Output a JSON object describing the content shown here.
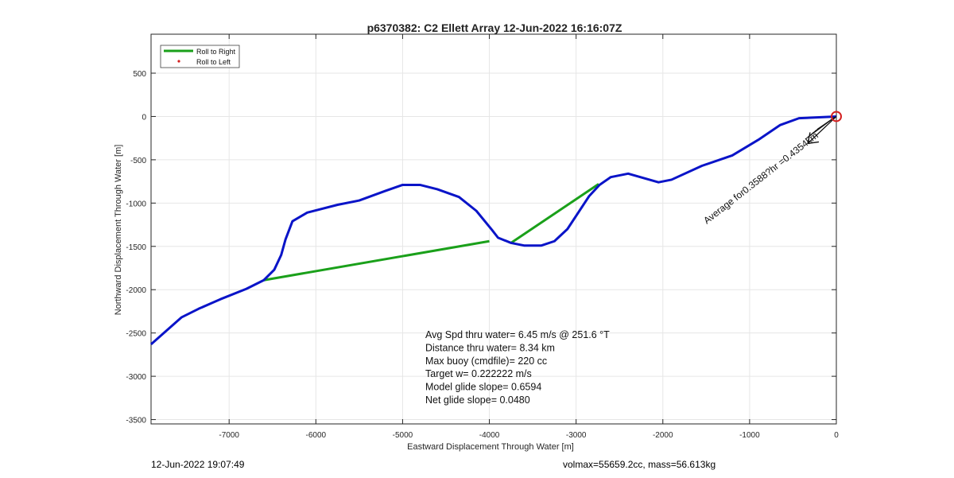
{
  "chart_data": {
    "type": "line",
    "title": "p6370382: C2 Ellett Array 12-Jun-2022 16:16:07Z",
    "xlabel": "Eastward Displacement Through Water [m]",
    "ylabel": "Northward Displacement Through Water [m]",
    "xlim": [
      -7900,
      0
    ],
    "ylim": [
      -3550,
      950
    ],
    "xticks": [
      -7000,
      -6000,
      -5000,
      -4000,
      -3000,
      -2000,
      -1000,
      0
    ],
    "yticks": [
      500,
      0,
      -500,
      -1000,
      -1500,
      -2000,
      -2500,
      -3000,
      -3500
    ],
    "grid": true,
    "legend_position": "top-left",
    "legend": [
      {
        "label": "Roll to Right",
        "color": "#1aa01a",
        "style": "line"
      },
      {
        "label": "Roll to Left",
        "color": "#d42020",
        "style": "dot"
      }
    ],
    "track": {
      "color": "#0a14c8",
      "x": [
        0,
        -430,
        -650,
        -900,
        -1200,
        -1550,
        -1900,
        -2050,
        -2400,
        -2600,
        -2730,
        -2850,
        -3100,
        -3250,
        -3400,
        -3600,
        -3750,
        -3900,
        -3970,
        -4150,
        -4350,
        -4600,
        -4800,
        -5000,
        -5200,
        -5500,
        -5750,
        -6100,
        -6270,
        -6350,
        -6400,
        -6480,
        -6600,
        -6800,
        -7100,
        -7350,
        -7550,
        -7900
      ],
      "y": [
        0,
        -20,
        -100,
        -270,
        -450,
        -570,
        -730,
        -760,
        -660,
        -700,
        -790,
        -920,
        -1300,
        -1440,
        -1490,
        -1490,
        -1460,
        -1400,
        -1310,
        -1090,
        -930,
        -840,
        -790,
        -790,
        -860,
        -970,
        -1020,
        -1110,
        -1210,
        -1420,
        -1600,
        -1770,
        -1890,
        -1990,
        -2110,
        -2220,
        -2320,
        -2630
      ]
    },
    "roll_right_segments": [
      {
        "x": [
          -6600,
          -4000
        ],
        "y": [
          -1890,
          -1440
        ]
      },
      {
        "x": [
          -3750,
          -2740
        ],
        "y": [
          -1460,
          -780
        ]
      }
    ],
    "end_marker": {
      "x": 0,
      "y": 0,
      "color": "#d42020"
    },
    "annotation_text": "Average for0.3588?hr =0.4354km",
    "info_lines": [
      "Avg Spd thru water=  6.45 m/s @ 251.6 °T",
      "Distance thru water=  8.34 km",
      "Max buoy (cmdfile)= 220 cc",
      "Target w= 0.222222 m/s",
      "Model glide slope= 0.6594",
      "Net glide slope= 0.0480"
    ]
  },
  "footer": {
    "timestamp": "12-Jun-2022 19:07:49",
    "volmax_mass": "volmax=55659.2cc, mass=56.613kg"
  }
}
